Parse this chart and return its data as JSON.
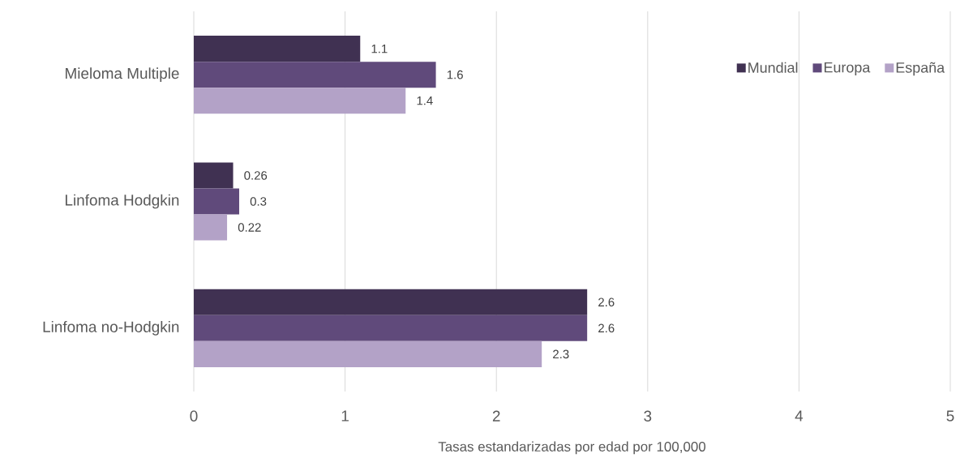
{
  "chart_data": {
    "type": "bar",
    "orientation": "horizontal",
    "categories": [
      "Mieloma Multiple",
      "Linfoma Hodgkin",
      "Linfoma no-Hodgkin"
    ],
    "series": [
      {
        "name": "Mundial",
        "color": "#403152",
        "values": [
          1.1,
          0.26,
          2.6
        ]
      },
      {
        "name": "Europa",
        "color": "#604a7b",
        "values": [
          1.6,
          0.3,
          2.6
        ]
      },
      {
        "name": "España",
        "color": "#b3a2c7",
        "values": [
          1.4,
          0.22,
          2.3
        ]
      }
    ],
    "xlabel": "Tasas estandarizadas por edad por 100,000",
    "xlim": [
      0,
      5
    ],
    "xticks": [
      0,
      1,
      2,
      3,
      4,
      5
    ],
    "grid": "x",
    "legend": "top right",
    "data_labels": true
  }
}
